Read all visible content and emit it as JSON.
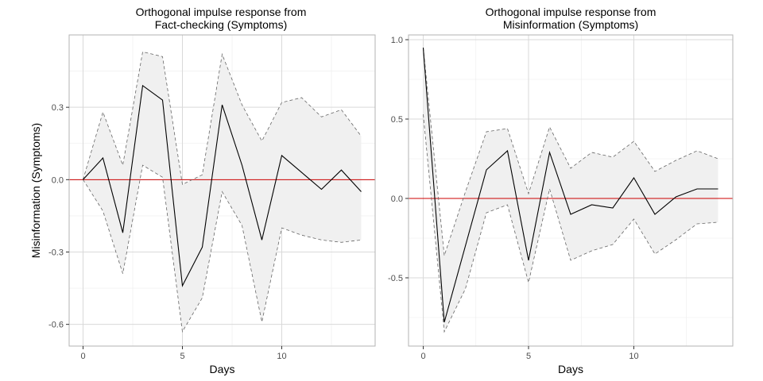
{
  "chart_data": [
    {
      "type": "line",
      "title_lines": [
        "Orthogonal impulse response from",
        "Fact-checking  (Symptoms)"
      ],
      "xlabel": "Days",
      "ylabel": "Misinformation (Symptoms)",
      "xlim": [
        -0.7,
        14.7
      ],
      "ylim": [
        -0.69,
        0.6
      ],
      "xticks": [
        0,
        5,
        10
      ],
      "xtick_labels": [
        "0",
        "5",
        "10"
      ],
      "yticks": [
        0.3,
        0.0,
        -0.3,
        -0.6
      ],
      "ytick_labels": [
        "0.3",
        "0.0",
        "-0.3",
        "-0.6"
      ],
      "x_minor_grid": [
        2.5,
        7.5,
        12.5
      ],
      "y_minor_grid": [
        0.45,
        0.15,
        -0.15,
        -0.45
      ],
      "grid": true,
      "zero_line": 0,
      "zero_line_color": "#cc0000",
      "band_fill": "#f0f0f0",
      "x": [
        0,
        1,
        2,
        3,
        4,
        5,
        6,
        7,
        8,
        9,
        10,
        11,
        12,
        13,
        14
      ],
      "series": [
        {
          "role": "irf",
          "values": [
            0.0,
            0.09,
            -0.22,
            0.39,
            0.33,
            -0.44,
            -0.28,
            0.31,
            0.06,
            -0.25,
            0.1,
            0.03,
            -0.04,
            0.04,
            -0.05
          ]
        },
        {
          "role": "upper",
          "values": [
            0.0,
            0.28,
            0.06,
            0.53,
            0.51,
            -0.02,
            0.02,
            0.52,
            0.31,
            0.16,
            0.32,
            0.34,
            0.26,
            0.29,
            0.18
          ]
        },
        {
          "role": "lower",
          "values": [
            0.0,
            -0.13,
            -0.39,
            0.06,
            0.01,
            -0.63,
            -0.49,
            -0.05,
            -0.19,
            -0.59,
            -0.2,
            -0.23,
            -0.25,
            -0.26,
            -0.25
          ]
        }
      ]
    },
    {
      "type": "line",
      "title_lines": [
        "Orthogonal impulse response from",
        "Misinformation (Symptoms)"
      ],
      "xlabel": "Days",
      "ylabel": "",
      "xlim": [
        -0.7,
        14.7
      ],
      "ylim": [
        -0.93,
        1.03
      ],
      "xticks": [
        0,
        5,
        10
      ],
      "xtick_labels": [
        "0",
        "5",
        "10"
      ],
      "yticks": [
        1.0,
        0.5,
        0.0,
        -0.5
      ],
      "ytick_labels": [
        "1.0",
        "0.5",
        "0.0",
        "-0.5"
      ],
      "x_minor_grid": [
        2.5,
        7.5,
        12.5
      ],
      "y_minor_grid": [
        0.75,
        0.25,
        -0.25,
        -0.75
      ],
      "grid": true,
      "zero_line": 0,
      "zero_line_color": "#cc0000",
      "band_fill": "#f0f0f0",
      "x": [
        0,
        1,
        2,
        3,
        4,
        5,
        6,
        7,
        8,
        9,
        10,
        11,
        12,
        13,
        14
      ],
      "series": [
        {
          "role": "irf",
          "values": [
            0.95,
            -0.78,
            -0.3,
            0.18,
            0.3,
            -0.39,
            0.29,
            -0.1,
            -0.04,
            -0.06,
            0.13,
            -0.1,
            0.01,
            0.06,
            0.06
          ]
        },
        {
          "role": "upper",
          "values": [
            0.95,
            -0.36,
            0.04,
            0.42,
            0.44,
            0.03,
            0.45,
            0.19,
            0.29,
            0.26,
            0.36,
            0.17,
            0.24,
            0.3,
            0.25
          ]
        },
        {
          "role": "lower",
          "values": [
            0.53,
            -0.84,
            -0.57,
            -0.09,
            -0.04,
            -0.53,
            0.06,
            -0.39,
            -0.33,
            -0.29,
            -0.13,
            -0.35,
            -0.26,
            -0.16,
            -0.15
          ]
        }
      ]
    }
  ]
}
